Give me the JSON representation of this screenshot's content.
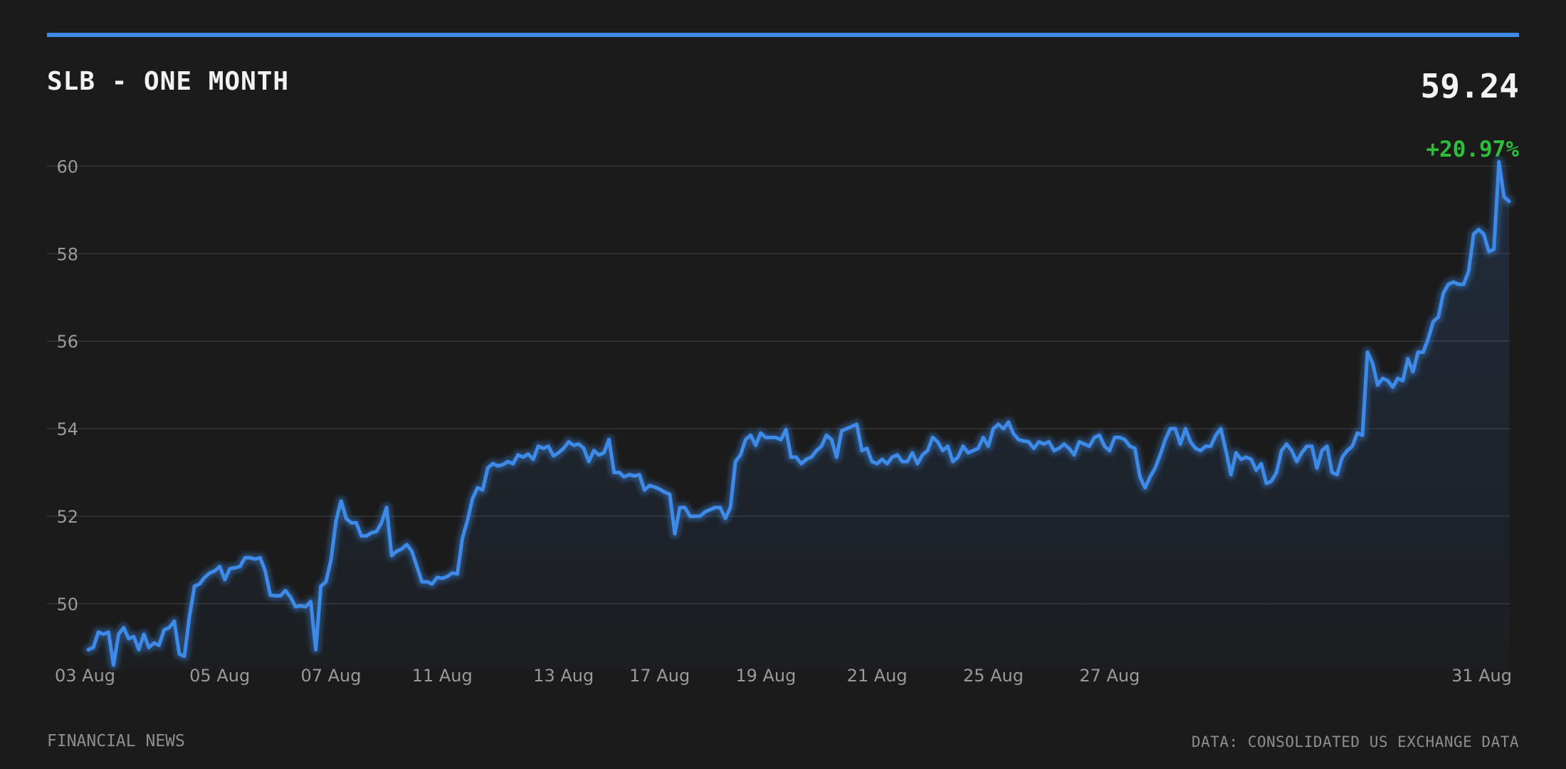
{
  "header": {
    "title": "SLB - ONE MONTH",
    "price": "59.24",
    "change": "+20.97%"
  },
  "footer": {
    "source_left": "FINANCIAL NEWS",
    "source_right": "DATA: CONSOLIDATED US EXCHANGE DATA"
  },
  "colors": {
    "background": "#1b1b1b",
    "accent": "#3d8ae8",
    "positive": "#2fbe3c",
    "grid": "#353535",
    "tick_text": "#9a9a9a"
  },
  "chart_data": {
    "type": "area",
    "title": "SLB - ONE MONTH",
    "ylim": [
      48.5,
      60.3
    ],
    "yticks": [
      50,
      52,
      54,
      56,
      58,
      60
    ],
    "grid": true,
    "xtick_labels": [
      {
        "label": "03 Aug",
        "index": 0
      },
      {
        "label": "05 Aug",
        "index": 26
      },
      {
        "label": "07 Aug",
        "index": 48
      },
      {
        "label": "11 Aug",
        "index": 70
      },
      {
        "label": "13 Aug",
        "index": 94
      },
      {
        "label": "17 Aug",
        "index": 113
      },
      {
        "label": "19 Aug",
        "index": 134
      },
      {
        "label": "21 Aug",
        "index": 156
      },
      {
        "label": "25 Aug",
        "index": 179
      },
      {
        "label": "27 Aug",
        "index": 202
      },
      {
        "label": "31 Aug",
        "index": 225
      }
    ],
    "series": [
      {
        "values": [
          48.95,
          49.0,
          49.35,
          49.3,
          49.35,
          48.6,
          49.3,
          49.45,
          49.2,
          49.25,
          48.95,
          49.3,
          49.0,
          49.1,
          49.05,
          49.4,
          49.45,
          49.6,
          48.85,
          48.8,
          49.7,
          50.4,
          50.45,
          50.6,
          50.7,
          50.75,
          50.85,
          50.55,
          50.8,
          50.82,
          50.85,
          51.05,
          51.05,
          51.02,
          51.05,
          50.75,
          50.2,
          50.18,
          50.18,
          50.3,
          50.15,
          49.93,
          49.95,
          49.93,
          50.05,
          48.95,
          50.4,
          50.5,
          51.0,
          51.9,
          52.35,
          51.95,
          51.85,
          51.85,
          51.55,
          51.55,
          51.62,
          51.65,
          51.85,
          52.2,
          51.1,
          51.2,
          51.25,
          51.35,
          51.2,
          50.85,
          50.5,
          50.5,
          50.45,
          50.6,
          50.58,
          50.62,
          50.7,
          50.68,
          51.5,
          51.9,
          52.4,
          52.65,
          52.6,
          53.1,
          53.2,
          53.15,
          53.18,
          53.25,
          53.2,
          53.4,
          53.35,
          53.42,
          53.3,
          53.6,
          53.55,
          53.6,
          53.38,
          53.45,
          53.55,
          53.7,
          53.62,
          53.65,
          53.55,
          53.25,
          53.5,
          53.4,
          53.45,
          53.75,
          53.0,
          53.0,
          52.9,
          52.95,
          52.92,
          52.95,
          52.6,
          52.7,
          52.67,
          52.62,
          52.55,
          52.5,
          51.6,
          52.2,
          52.2,
          52.0,
          52.0,
          52.0,
          52.1,
          52.15,
          52.2,
          52.2,
          51.95,
          52.2,
          53.25,
          53.4,
          53.75,
          53.85,
          53.62,
          53.9,
          53.8,
          53.8,
          53.8,
          53.75,
          53.98,
          53.35,
          53.35,
          53.2,
          53.3,
          53.35,
          53.5,
          53.6,
          53.85,
          53.75,
          53.35,
          53.95,
          54.0,
          54.05,
          54.1,
          53.5,
          53.55,
          53.25,
          53.2,
          53.3,
          53.2,
          53.35,
          53.4,
          53.25,
          53.25,
          53.45,
          53.2,
          53.4,
          53.5,
          53.8,
          53.7,
          53.5,
          53.6,
          53.25,
          53.35,
          53.6,
          53.45,
          53.5,
          53.55,
          53.8,
          53.6,
          54.0,
          54.1,
          54.0,
          54.15,
          53.88,
          53.75,
          53.72,
          53.7,
          53.55,
          53.7,
          53.65,
          53.7,
          53.5,
          53.55,
          53.65,
          53.55,
          53.4,
          53.7,
          53.65,
          53.6,
          53.8,
          53.85,
          53.6,
          53.5,
          53.8,
          53.8,
          53.75,
          53.6,
          53.55,
          52.9,
          52.65,
          52.9,
          53.1,
          53.4,
          53.75,
          54.0,
          54.0,
          53.65,
          54.0,
          53.7,
          53.55,
          53.5,
          53.6,
          53.6,
          53.85,
          54.0,
          53.5,
          52.95,
          53.45,
          53.3,
          53.35,
          53.3,
          53.05,
          53.2,
          52.75,
          52.8,
          53.0,
          53.5,
          53.65,
          53.5,
          53.25,
          53.45,
          53.6,
          53.6,
          53.1,
          53.5,
          53.6,
          53.0,
          52.95,
          53.35,
          53.5,
          53.6,
          53.9,
          53.85,
          55.75,
          55.5,
          55.0,
          55.15,
          55.1,
          54.95,
          55.15,
          55.1,
          55.6,
          55.3,
          55.75,
          55.75,
          56.05,
          56.45,
          56.55,
          57.1,
          57.3,
          57.35,
          57.3,
          57.3,
          57.6,
          58.45,
          58.55,
          58.45,
          58.05,
          58.1,
          60.1,
          59.3,
          59.2
        ]
      }
    ]
  }
}
